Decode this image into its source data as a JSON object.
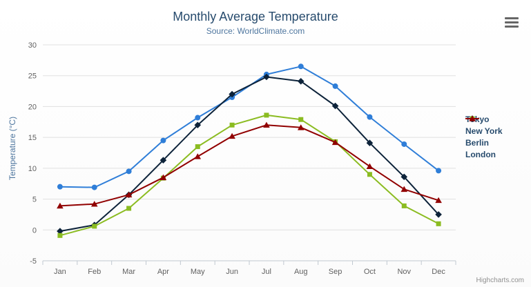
{
  "header": {
    "title": "Monthly Average Temperature",
    "subtitle": "Source: WorldClimate.com"
  },
  "y_axis": {
    "title": "Temperature (°C)"
  },
  "credits": {
    "label": "Highcharts.com"
  },
  "chart_data": {
    "type": "line",
    "title": "Monthly Average Temperature",
    "subtitle": "Source: WorldClimate.com",
    "xlabel": "",
    "ylabel": "Temperature (°C)",
    "categories": [
      "Jan",
      "Feb",
      "Mar",
      "Apr",
      "May",
      "Jun",
      "Jul",
      "Aug",
      "Sep",
      "Oct",
      "Nov",
      "Dec"
    ],
    "series": [
      {
        "name": "Tokyo",
        "color": "#2f7ed8",
        "marker": "circle",
        "values": [
          7.0,
          6.9,
          9.5,
          14.5,
          18.2,
          21.5,
          25.2,
          26.5,
          23.3,
          18.3,
          13.9,
          9.6
        ]
      },
      {
        "name": "New York",
        "color": "#0d233a",
        "marker": "diamond",
        "values": [
          -0.2,
          0.8,
          5.7,
          11.3,
          17.0,
          22.0,
          24.8,
          24.1,
          20.1,
          14.1,
          8.6,
          2.5
        ]
      },
      {
        "name": "Berlin",
        "color": "#8bbc21",
        "marker": "square",
        "values": [
          -0.9,
          0.6,
          3.5,
          8.4,
          13.5,
          17.0,
          18.6,
          17.9,
          14.3,
          9.0,
          3.9,
          1.0
        ]
      },
      {
        "name": "London",
        "color": "#910000",
        "marker": "triangle",
        "values": [
          3.9,
          4.2,
          5.7,
          8.5,
          11.9,
          15.2,
          17.0,
          16.6,
          14.2,
          10.3,
          6.6,
          4.8
        ]
      }
    ],
    "ylim": [
      -5,
      30
    ],
    "ytick_step": 5,
    "grid": true,
    "legend_position": "right"
  }
}
